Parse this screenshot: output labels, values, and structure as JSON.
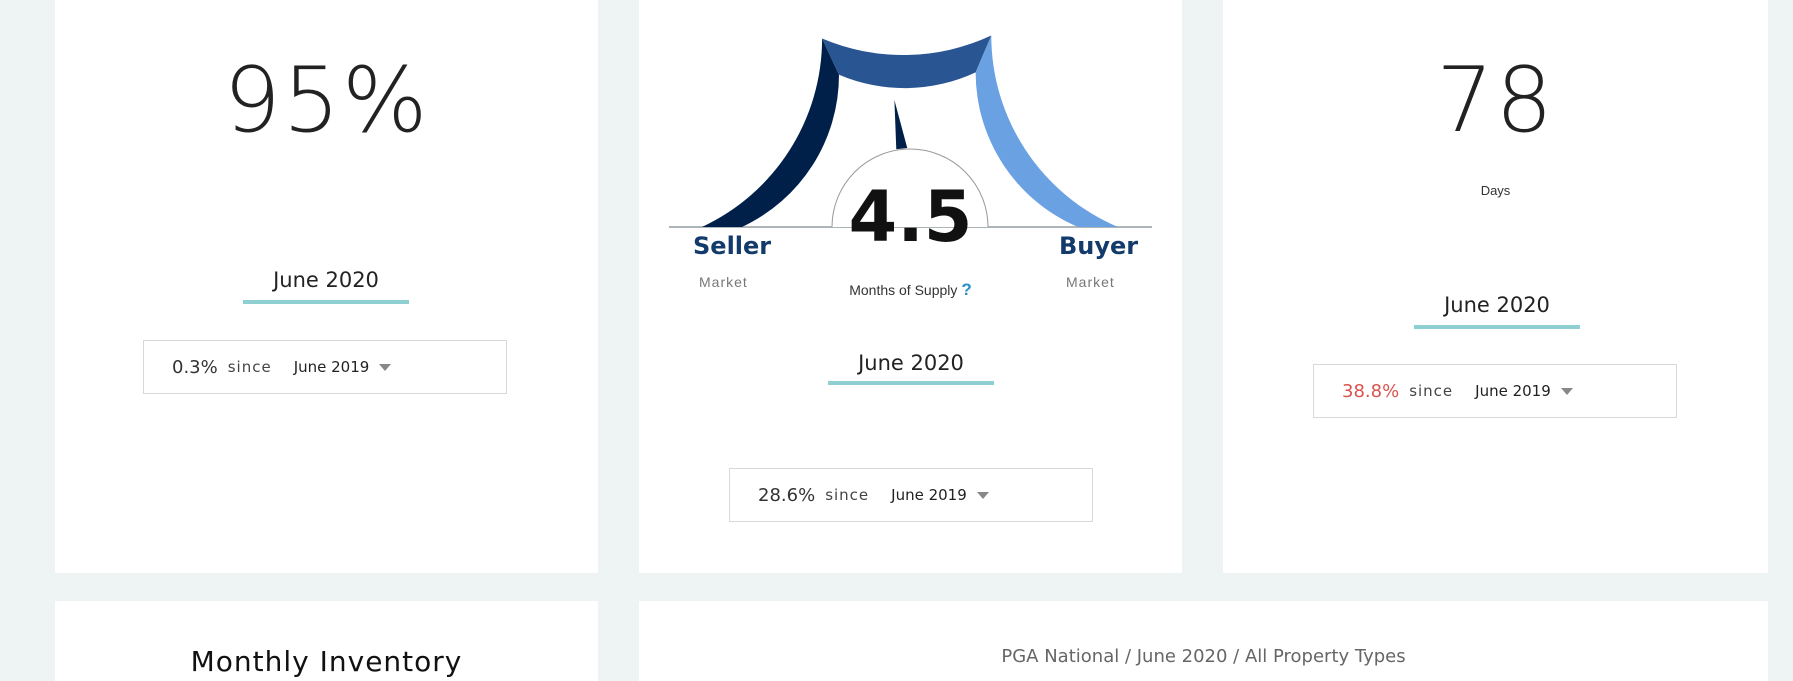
{
  "list_to_sale": {
    "value": "95%",
    "period": "June 2020",
    "change": {
      "percent": "0.3%",
      "since_label": "since",
      "reference": "June 2019"
    }
  },
  "months_supply": {
    "value": "4.5",
    "label": "Months of Supply",
    "help_icon": "?",
    "value_numeric": 4.5,
    "seller": {
      "title": "Seller",
      "subtitle": "Market"
    },
    "buyer": {
      "title": "Buyer",
      "subtitle": "Market"
    },
    "period": "June 2020",
    "change": {
      "percent": "28.6%",
      "since_label": "since",
      "reference": "June 2019"
    },
    "colors": {
      "seller": "#00204a",
      "balanced": "#2a5593",
      "buyer": "#6aa1e2"
    }
  },
  "days_on_market": {
    "value": "78",
    "unit": "Days",
    "period": "June 2020",
    "change": {
      "percent": "38.8%",
      "since_label": "since",
      "reference": "June 2019",
      "color": "#d9534f"
    }
  },
  "inventory": {
    "title": "Monthly Inventory"
  },
  "breadcrumb": {
    "text": "PGA National / June 2020 / All Property Types"
  },
  "colors": {
    "accent_underline": "#8ecfd1",
    "background": "#eef3f4"
  }
}
